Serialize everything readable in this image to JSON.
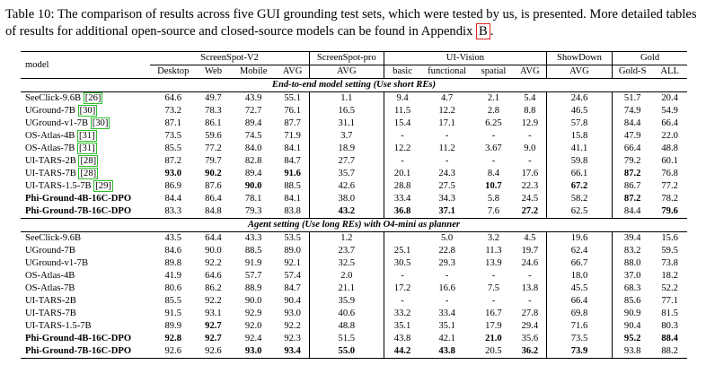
{
  "caption": {
    "text": "Table 10: The comparison of results across five GUI grounding test sets, which were tested by us, is presented. More detailed tables of results for additional open-source and closed-source models can be found in Appendix ",
    "appendix_ref": "B",
    "end": "."
  },
  "table": {
    "model_header": "model",
    "groups": [
      "ScreenSpot-V2",
      "ScreenSpot-pro",
      "UI-Vision",
      "ShowDown",
      "Gold"
    ],
    "subheaders": [
      "Desktop",
      "Web",
      "Mobile",
      "AVG",
      "AVG",
      "basic",
      "functional",
      "spatial",
      "AVG",
      "AVG",
      "Gold-S",
      "ALL"
    ],
    "section1_title": "End-to-end model setting (Use short REs)",
    "section2_title": "Agent setting (Use long REs) with O4-mini as planner",
    "section1_rows": [
      {
        "name": "SeeClick-9.6B",
        "ref": "26",
        "cells": [
          "64.6",
          "49.7",
          "43.9",
          "55.1",
          "1.1",
          "9.4",
          "4.7",
          "2.1",
          "5.4",
          "24.6",
          "51.7",
          "20.4"
        ],
        "bold": []
      },
      {
        "name": "UGround-7B",
        "ref": "30",
        "cells": [
          "73.2",
          "78.3",
          "72.7",
          "76.1",
          "16.5",
          "11.5",
          "12.2",
          "2.8",
          "8.8",
          "46.5",
          "74.9",
          "54.9"
        ],
        "bold": []
      },
      {
        "name": "UGround-v1-7B",
        "ref": "30",
        "cells": [
          "87.1",
          "86.1",
          "89.4",
          "87.7",
          "31.1",
          "15.4",
          "17.1",
          "6.25",
          "12.9",
          "57.8",
          "84.4",
          "66.4"
        ],
        "bold": []
      },
      {
        "name": "OS-Atlas-4B",
        "ref": "31",
        "cells": [
          "73.5",
          "59.6",
          "74.5",
          "71.9",
          "3.7",
          "-",
          "-",
          "-",
          "-",
          "15.8",
          "47.9",
          "22.0"
        ],
        "bold": []
      },
      {
        "name": "OS-Atlas-7B",
        "ref": "31",
        "cells": [
          "85.5",
          "77.2",
          "84.0",
          "84.1",
          "18.9",
          "12.2",
          "11.2",
          "3.67",
          "9.0",
          "41.1",
          "66.4",
          "48.8"
        ],
        "bold": []
      },
      {
        "name": "UI-TARS-2B",
        "ref": "28",
        "cells": [
          "87.2",
          "79.7",
          "82.8",
          "84.7",
          "27.7",
          "-",
          "-",
          "-",
          "-",
          "59.8",
          "79.2",
          "60.1"
        ],
        "bold": []
      },
      {
        "name": "UI-TARS-7B",
        "ref": "28",
        "cells": [
          "93.0",
          "90.2",
          "89.4",
          "91.6",
          "35.7",
          "20.1",
          "24.3",
          "8.4",
          "17.6",
          "66.1",
          "87.2",
          "76.8"
        ],
        "bold": [
          0,
          1,
          3,
          10
        ]
      },
      {
        "name": "UI-TARS-1.5-7B",
        "ref": "29",
        "cells": [
          "86.9",
          "87.6",
          "90.0",
          "88.5",
          "42.6",
          "28.8",
          "27.5",
          "10.7",
          "22.3",
          "67.2",
          "86.7",
          "77.2"
        ],
        "bold": [
          2,
          7,
          9
        ]
      },
      {
        "name": "Phi-Ground-4B-16C-DPO",
        "ref": "",
        "cells": [
          "84.4",
          "86.4",
          "78.1",
          "84.1",
          "38.0",
          "33.4",
          "34.3",
          "5.8",
          "24.5",
          "58.2",
          "87.2",
          "78.2"
        ],
        "bold": [
          10
        ],
        "name_bold": true
      },
      {
        "name": "Phi-Ground-7B-16C-DPO",
        "ref": "",
        "cells": [
          "83.3",
          "84.8",
          "79.3",
          "83.8",
          "43.2",
          "36.8",
          "37.1",
          "7.6",
          "27.2",
          "62.5",
          "84.4",
          "79.6"
        ],
        "bold": [
          4,
          5,
          6,
          8,
          11
        ],
        "name_bold": true
      }
    ],
    "section2_rows": [
      {
        "name": "SeeClick-9.6B",
        "cells": [
          "43.5",
          "64.4",
          "43.3",
          "53.5",
          "1.2",
          "5.0",
          "3.2",
          "4.5",
          "19.6",
          "39.4",
          "15.6"
        ],
        "bold": [],
        "gap_after": 4
      },
      {
        "name": "UGround-7B",
        "cells": [
          "84.6",
          "90.0",
          "88.5",
          "89.0",
          "23.7",
          "25.1",
          "22.8",
          "11.3",
          "19.7",
          "62.4",
          "83.2",
          "59.5"
        ],
        "bold": []
      },
      {
        "name": "UGround-v1-7B",
        "cells": [
          "89.8",
          "92.2",
          "91.9",
          "92.1",
          "32.5",
          "30.5",
          "29.3",
          "13.9",
          "24.6",
          "66.7",
          "88.0",
          "73.8"
        ],
        "bold": []
      },
      {
        "name": "OS-Atlas-4B",
        "cells": [
          "41.9",
          "64.6",
          "57.7",
          "57.4",
          "2.0",
          "-",
          "-",
          "-",
          "-",
          "18.0",
          "37.0",
          "18.2"
        ],
        "bold": []
      },
      {
        "name": "OS-Atlas-7B",
        "cells": [
          "80.6",
          "86.2",
          "88.9",
          "84.7",
          "21.1",
          "17.2",
          "16.6",
          "7.5",
          "13.8",
          "45.5",
          "68.3",
          "52.2"
        ],
        "bold": []
      },
      {
        "name": "UI-TARS-2B",
        "cells": [
          "85.5",
          "92.2",
          "90.0",
          "90.4",
          "35.9",
          "-",
          "-",
          "-",
          "-",
          "66.4",
          "85.6",
          "77.1"
        ],
        "bold": []
      },
      {
        "name": "UI-TARS-7B",
        "cells": [
          "91.5",
          "93.1",
          "92.9",
          "93.0",
          "40.6",
          "33.2",
          "33.4",
          "16.7",
          "27.8",
          "69.8",
          "90.9",
          "81.5"
        ],
        "bold": []
      },
      {
        "name": "UI-TARS-1.5-7B",
        "cells": [
          "89.9",
          "92.7",
          "92.0",
          "92.2",
          "48.8",
          "35.1",
          "35.1",
          "17.9",
          "29.4",
          "71.6",
          "90.4",
          "80.3"
        ],
        "bold": [
          1
        ]
      },
      {
        "name": "Phi-Ground-4B-16C-DPO",
        "cells": [
          "92.8",
          "92.7",
          "92.4",
          "92.3",
          "51.5",
          "43.8",
          "42.1",
          "21.0",
          "35.6",
          "73.5",
          "95.2",
          "88.4"
        ],
        "bold": [
          0,
          1,
          7,
          10,
          11
        ],
        "name_bold": true
      },
      {
        "name": "Phi-Ground-7B-16C-DPO",
        "cells": [
          "92.6",
          "92.6",
          "93.0",
          "93.4",
          "55.0",
          "44.2",
          "43.8",
          "20.5",
          "36.2",
          "73.9",
          "93.8",
          "88.2"
        ],
        "bold": [
          2,
          3,
          4,
          5,
          6,
          8,
          9
        ],
        "name_bold": true
      }
    ]
  }
}
